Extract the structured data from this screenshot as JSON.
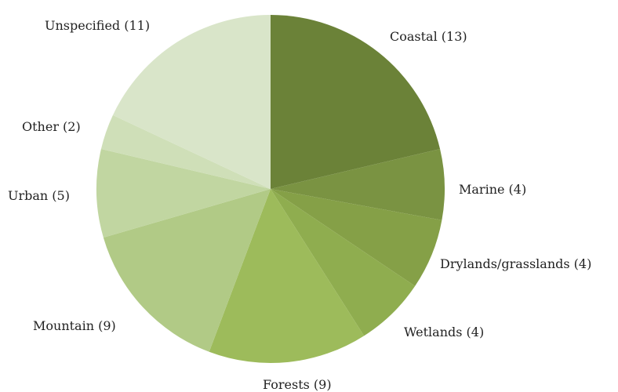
{
  "chart_data": {
    "type": "pie",
    "start_angle_deg": 0,
    "direction": "clockwise",
    "legend": "none",
    "slices": [
      {
        "label": "Coastal (13)",
        "category": "Coastal",
        "value": 13,
        "color": "#6b8238"
      },
      {
        "label": "Marine (4)",
        "category": "Marine",
        "value": 4,
        "color": "#7a9342"
      },
      {
        "label": "Drylands/grasslands (4)",
        "category": "Drylands/grasslands",
        "value": 4,
        "color": "#85a047"
      },
      {
        "label": "Wetlands (4)",
        "category": "Wetlands",
        "value": 4,
        "color": "#8fad4f"
      },
      {
        "label": "Forests (9)",
        "category": "Forests",
        "value": 9,
        "color": "#9dbb5b"
      },
      {
        "label": "Mountain (9)",
        "category": "Mountain",
        "value": 9,
        "color": "#b1ca86"
      },
      {
        "label": "Urban (5)",
        "category": "Urban",
        "value": 5,
        "color": "#c1d6a1"
      },
      {
        "label": "Other (2)",
        "category": "Other",
        "value": 2,
        "color": "#cfdfb8"
      },
      {
        "label": "Unspecified (11)",
        "category": "Unspecified",
        "value": 11,
        "color": "#d9e5c9"
      }
    ]
  }
}
